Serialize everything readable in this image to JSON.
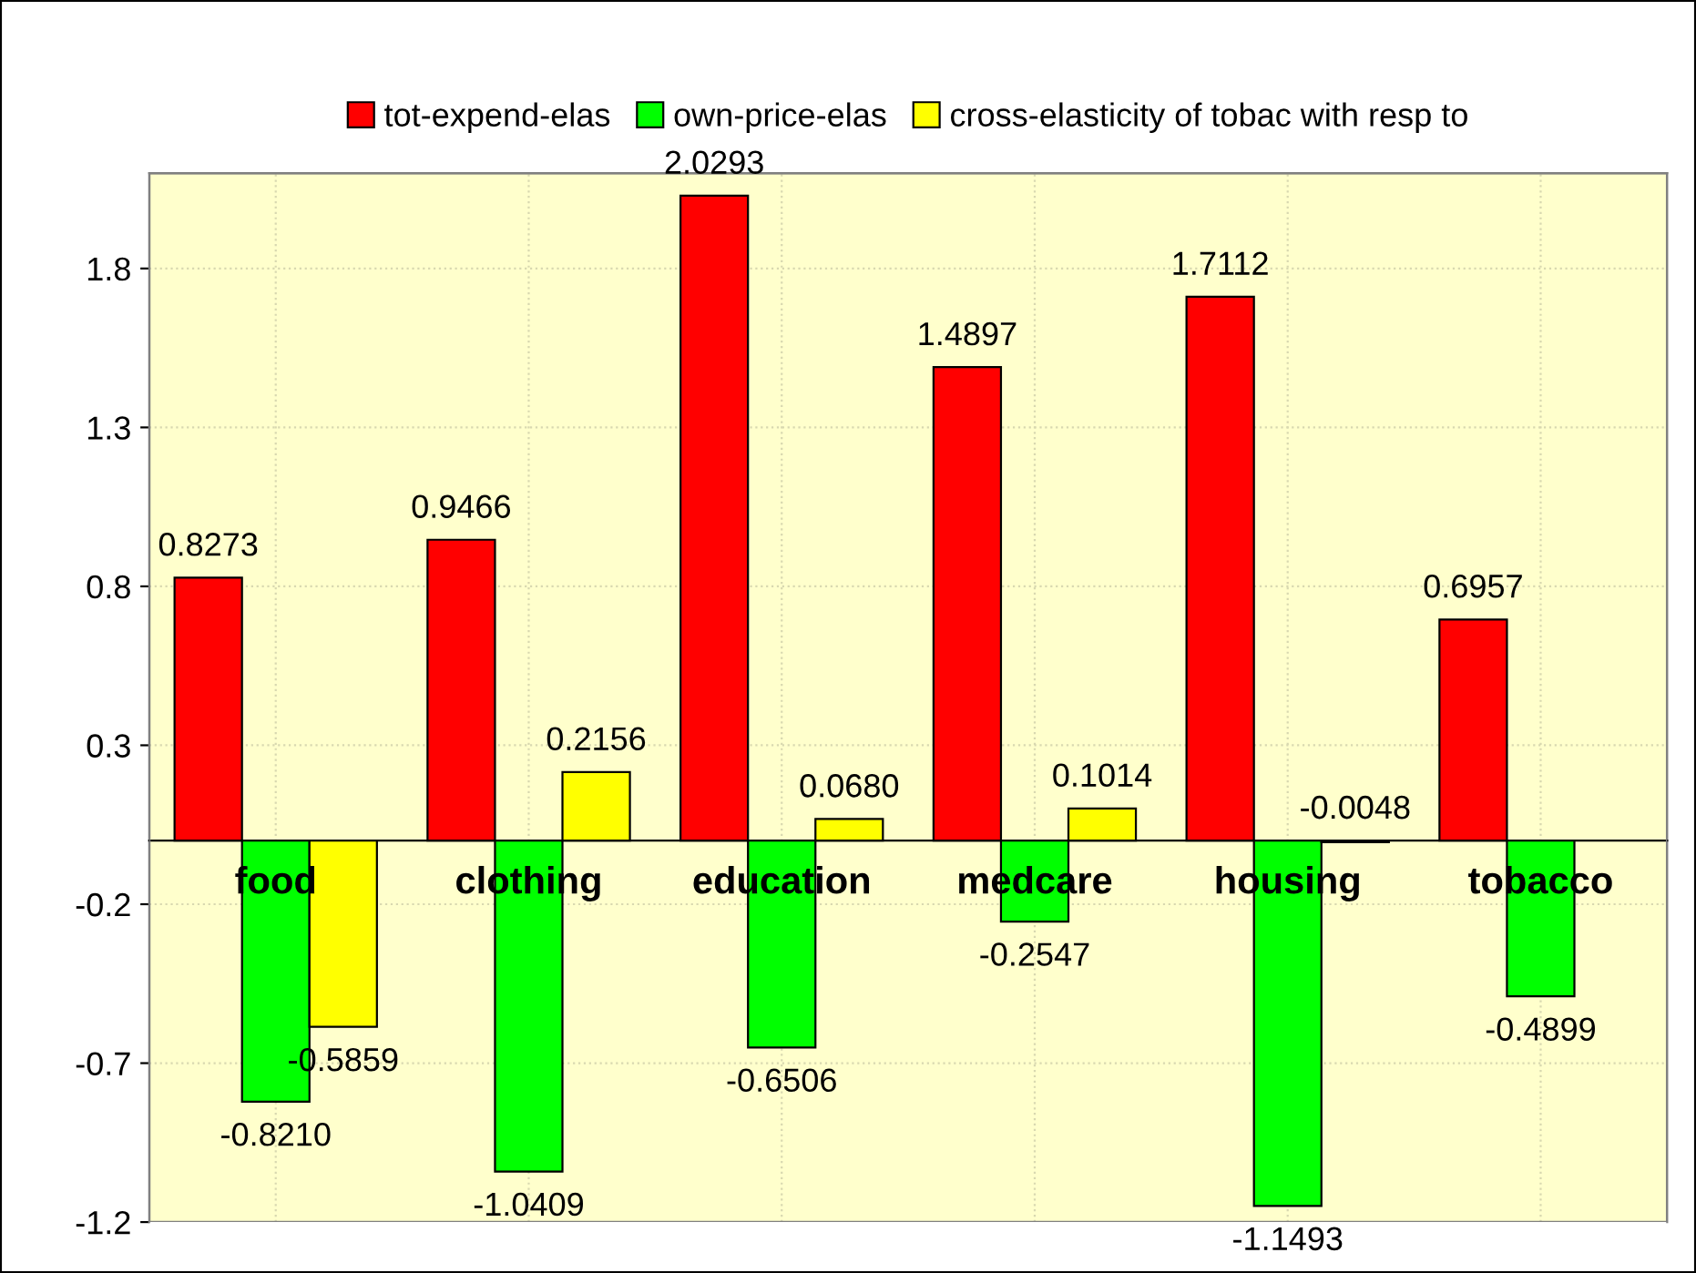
{
  "chart_data": {
    "type": "bar",
    "categories": [
      "food",
      "clothing",
      "education",
      "medcare",
      "housing",
      "tobacco"
    ],
    "series": [
      {
        "name": "tot-expend-elas",
        "color": "#ff0000",
        "values": [
          0.8273,
          0.9466,
          2.0293,
          1.4897,
          1.7112,
          0.6957
        ],
        "value_labels": [
          "0.8273",
          "0.9466",
          "2.0293",
          "1.4897",
          "1.7112",
          "0.6957"
        ]
      },
      {
        "name": "own-price-elas",
        "color": "#00ff00",
        "values": [
          -0.821,
          -1.0409,
          -0.6506,
          -0.2547,
          -1.1493,
          -0.4899
        ],
        "value_labels": [
          "-0.8210",
          "-1.0409",
          "-0.6506",
          "-0.2547",
          "-1.1493",
          "-0.4899"
        ]
      },
      {
        "name": "cross-elasticity of tobac with resp to",
        "color": "#ffff00",
        "values": [
          -0.5859,
          0.2156,
          0.068,
          0.1014,
          -0.0048,
          null
        ],
        "value_labels": [
          "-0.5859",
          "0.2156",
          "0.0680",
          "0.1014",
          "-0.0048",
          null
        ]
      }
    ],
    "ylim": [
      -1.2,
      2.1
    ],
    "yticks": [
      -1.2,
      -0.7,
      -0.2,
      0.3,
      0.8,
      1.3,
      1.8
    ],
    "grid": true,
    "legend": "top"
  }
}
